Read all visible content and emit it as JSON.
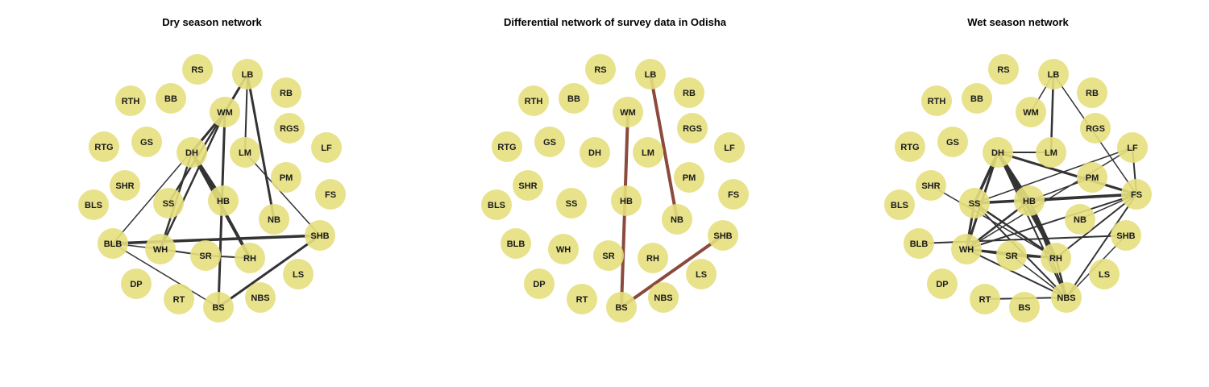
{
  "nodes": [
    "RS",
    "LB",
    "RB",
    "RTH",
    "BB",
    "WM",
    "RGS",
    "RTG",
    "GS",
    "DH",
    "LM",
    "LF",
    "PM",
    "FS",
    "SHR",
    "SS",
    "HB",
    "BLS",
    "NB",
    "SHB",
    "BLB",
    "WH",
    "SR",
    "RH",
    "LS",
    "DP",
    "RT",
    "BS",
    "NBS"
  ],
  "colors": {
    "node_fill": "#e5df7e",
    "edge_default": "#333333",
    "edge_differential": "#8b4a3c"
  },
  "panels": [
    {
      "id": "dry",
      "title": "Dry season network",
      "edges": [
        {
          "a": "LB",
          "b": "WM",
          "w": 3
        },
        {
          "a": "LB",
          "b": "LM",
          "w": 2
        },
        {
          "a": "LB",
          "b": "NB",
          "w": 3
        },
        {
          "a": "WM",
          "b": "DH",
          "w": 3
        },
        {
          "a": "WM",
          "b": "SS",
          "w": 2.5
        },
        {
          "a": "WM",
          "b": "WH",
          "w": 2.5
        },
        {
          "a": "WM",
          "b": "BS",
          "w": 3
        },
        {
          "a": "WM",
          "b": "BLB",
          "w": 1.5
        },
        {
          "a": "DH",
          "b": "WH",
          "w": 2.5
        },
        {
          "a": "DH",
          "b": "HB",
          "w": 4
        },
        {
          "a": "DH",
          "b": "RH",
          "w": 4
        },
        {
          "a": "LM",
          "b": "SHB",
          "w": 1.5
        },
        {
          "a": "BLB",
          "b": "SHB",
          "w": 3.5
        },
        {
          "a": "BLB",
          "b": "WH",
          "w": 1.5
        },
        {
          "a": "BLB",
          "b": "BS",
          "w": 1.5
        },
        {
          "a": "WH",
          "b": "SR",
          "w": 2
        },
        {
          "a": "SR",
          "b": "RH",
          "w": 2
        },
        {
          "a": "BS",
          "b": "SHB",
          "w": 3
        }
      ]
    },
    {
      "id": "diff",
      "title": "Differential network of survey data in Odisha",
      "edges": [
        {
          "a": "WM",
          "b": "BS",
          "w": 4
        },
        {
          "a": "LB",
          "b": "NB",
          "w": 4
        },
        {
          "a": "BS",
          "b": "SHB",
          "w": 4
        }
      ]
    },
    {
      "id": "wet",
      "title": "Wet season network",
      "edges": [
        {
          "a": "LB",
          "b": "WM",
          "w": 1.5
        },
        {
          "a": "LB",
          "b": "LM",
          "w": 2.5
        },
        {
          "a": "LB",
          "b": "FS",
          "w": 1.5
        },
        {
          "a": "DH",
          "b": "LM",
          "w": 2
        },
        {
          "a": "DH",
          "b": "SS",
          "w": 3.5
        },
        {
          "a": "DH",
          "b": "WH",
          "w": 3
        },
        {
          "a": "DH",
          "b": "HB",
          "w": 4
        },
        {
          "a": "DH",
          "b": "RH",
          "w": 4
        },
        {
          "a": "DH",
          "b": "FS",
          "w": 3
        },
        {
          "a": "DH",
          "b": "NBS",
          "w": 2
        },
        {
          "a": "LF",
          "b": "SS",
          "w": 1.5
        },
        {
          "a": "LF",
          "b": "FS",
          "w": 2
        },
        {
          "a": "LF",
          "b": "WH",
          "w": 1.5
        },
        {
          "a": "SS",
          "b": "FS",
          "w": 3.5
        },
        {
          "a": "SS",
          "b": "HB",
          "w": 2
        },
        {
          "a": "SS",
          "b": "RH",
          "w": 2.5
        },
        {
          "a": "SS",
          "b": "WH",
          "w": 3
        },
        {
          "a": "SS",
          "b": "NBS",
          "w": 2
        },
        {
          "a": "SHR",
          "b": "RH",
          "w": 1.5
        },
        {
          "a": "HB",
          "b": "FS",
          "w": 3
        },
        {
          "a": "HB",
          "b": "WH",
          "w": 2.5
        },
        {
          "a": "HB",
          "b": "RH",
          "w": 3.5
        },
        {
          "a": "HB",
          "b": "NBS",
          "w": 2
        },
        {
          "a": "FS",
          "b": "WH",
          "w": 2
        },
        {
          "a": "FS",
          "b": "RH",
          "w": 2
        },
        {
          "a": "FS",
          "b": "NBS",
          "w": 2
        },
        {
          "a": "FS",
          "b": "NB",
          "w": 1.5
        },
        {
          "a": "BLB",
          "b": "SHB",
          "w": 2
        },
        {
          "a": "WH",
          "b": "SR",
          "w": 2
        },
        {
          "a": "WH",
          "b": "RH",
          "w": 2.5
        },
        {
          "a": "WH",
          "b": "NBS",
          "w": 2
        },
        {
          "a": "SR",
          "b": "RH",
          "w": 2
        },
        {
          "a": "SR",
          "b": "NBS",
          "w": 1.5
        },
        {
          "a": "RT",
          "b": "NBS",
          "w": 2
        },
        {
          "a": "RH",
          "b": "NBS",
          "w": 2.5
        },
        {
          "a": "SHB",
          "b": "NBS",
          "w": 1.5
        },
        {
          "a": "PM",
          "b": "HB",
          "w": 1.5
        }
      ]
    }
  ]
}
